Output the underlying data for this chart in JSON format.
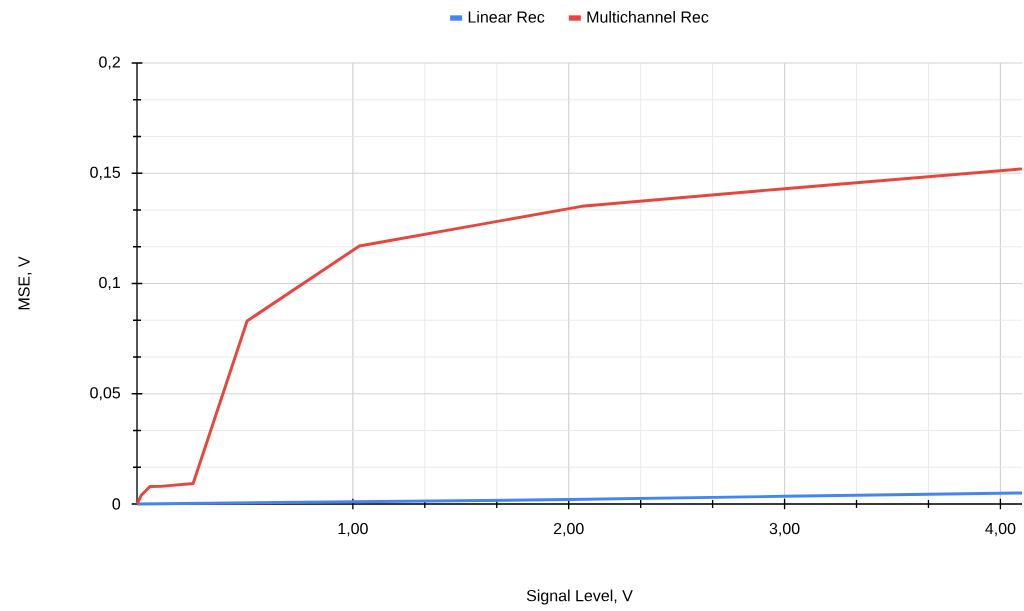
{
  "chart_data": {
    "type": "line",
    "xlabel": "Signal Level, V",
    "ylabel": "MSE, V",
    "series": [
      {
        "name": "Linear Rec",
        "color": "#4285f4",
        "x": [
          0,
          1,
          2,
          3,
          4.1
        ],
        "values": [
          0,
          0.001,
          0.002,
          0.0035,
          0.005
        ]
      },
      {
        "name": "Multichannel Rec",
        "color": "#e8453c",
        "x": [
          0,
          0.02,
          0.06,
          0.11,
          0.26,
          0.51,
          1.03,
          2.06,
          3.0,
          4.1
        ],
        "values": [
          0,
          0.004,
          0.0079,
          0.008,
          0.0093,
          0.083,
          0.117,
          0.135,
          0.143,
          0.152
        ]
      }
    ],
    "xlim": [
      0,
      4.1
    ],
    "ylim": [
      0,
      0.2
    ],
    "xticks": [
      {
        "value": 1,
        "label": "1,00"
      },
      {
        "value": 2,
        "label": "2,00"
      },
      {
        "value": 3,
        "label": "3,00"
      },
      {
        "value": 4,
        "label": "4,00"
      }
    ],
    "yticks": [
      0,
      {
        "value": 0.05,
        "label": "0,05"
      },
      {
        "value": 0.1,
        "label": "0,1"
      },
      {
        "value": 0.15,
        "label": "0,15"
      },
      {
        "value": 0.2,
        "label": "0,2"
      }
    ],
    "grid": true,
    "legend": "top",
    "marker": "none",
    "line_style": "solid"
  }
}
